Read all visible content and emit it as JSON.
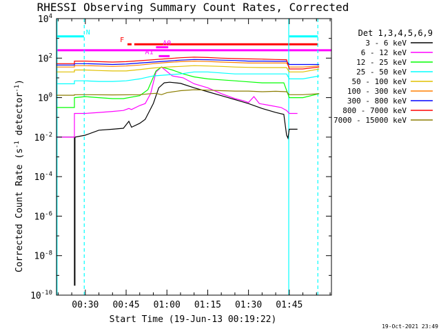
{
  "chart_data": {
    "type": "line",
    "title": "RHESSI Observing Summary Count Rates, Corrected",
    "xlabel": "Start Time (19-Jun-13 00:19:22)",
    "ylabel_parts": {
      "pre": "Corrected Count Rate (s",
      "sup1": "-1",
      "mid": " detector",
      "sup2": "-1",
      "post": ")"
    },
    "x_ticks": [
      {
        "t": 30,
        "label": "00:30"
      },
      {
        "t": 45,
        "label": "00:45"
      },
      {
        "t": 60,
        "label": "01:00"
      },
      {
        "t": 75,
        "label": "01:15"
      },
      {
        "t": 90,
        "label": "01:30"
      },
      {
        "t": 105,
        "label": "01:45"
      }
    ],
    "y_ticks": [
      {
        "exp": 4,
        "base": "10",
        "sup": "4"
      },
      {
        "exp": 2,
        "base": "10",
        "sup": "2"
      },
      {
        "exp": 0,
        "base": "10",
        "sup": "0"
      },
      {
        "exp": -2,
        "base": "10",
        "sup": "-2"
      },
      {
        "exp": -4,
        "base": "10",
        "sup": "-4"
      },
      {
        "exp": -6,
        "base": "10",
        "sup": "-6"
      },
      {
        "exp": -8,
        "base": "10",
        "sup": "-8"
      },
      {
        "exp": -10,
        "base": "10",
        "sup": "-10"
      }
    ],
    "xlim": [
      19.4,
      120.5
    ],
    "ylim_log10": [
      -10,
      4
    ],
    "legend_title": "Det 1,3,4,5,6,9",
    "legend_position": "right",
    "series": [
      {
        "name": "3 - 6 keV",
        "color": "#000000",
        "points": [
          [
            19.4,
            -2
          ],
          [
            26,
            -2
          ],
          [
            26,
            -9.5
          ],
          [
            26.2,
            -9.5
          ],
          [
            26.2,
            -2
          ],
          [
            30,
            -1.9
          ],
          [
            35,
            -1.65
          ],
          [
            40,
            -1.6
          ],
          [
            44,
            -1.55
          ],
          [
            46,
            -1.2
          ],
          [
            47,
            -1.5
          ],
          [
            50,
            -1.3
          ],
          [
            52,
            -1.1
          ],
          [
            55,
            -0.3
          ],
          [
            57,
            0.5
          ],
          [
            59,
            0.75
          ],
          [
            61,
            0.78
          ],
          [
            65,
            0.72
          ],
          [
            70,
            0.5
          ],
          [
            75,
            0.3
          ],
          [
            80,
            0.1
          ],
          [
            85,
            -0.1
          ],
          [
            90,
            -0.3
          ],
          [
            95,
            -0.55
          ],
          [
            100,
            -0.75
          ],
          [
            103,
            -0.85
          ],
          [
            104,
            -1.9
          ],
          [
            104.5,
            -2.05
          ],
          [
            105,
            -1.6
          ],
          [
            108,
            -1.6
          ]
        ]
      },
      {
        "name": "6 - 12 keV",
        "color": "#ff00ff",
        "points": [
          [
            19.4,
            -2
          ],
          [
            26,
            -2
          ],
          [
            26,
            -0.8
          ],
          [
            30,
            -0.8
          ],
          [
            35,
            -0.75
          ],
          [
            40,
            -0.7
          ],
          [
            44,
            -0.65
          ],
          [
            46,
            -0.55
          ],
          [
            47,
            -0.6
          ],
          [
            50,
            -0.4
          ],
          [
            52,
            -0.3
          ],
          [
            54,
            0.2
          ],
          [
            56,
            1.3
          ],
          [
            58,
            1.55
          ],
          [
            62,
            1.1
          ],
          [
            66,
            1.0
          ],
          [
            70,
            0.7
          ],
          [
            75,
            0.5
          ],
          [
            80,
            0.2
          ],
          [
            85,
            -0.05
          ],
          [
            88,
            -0.15
          ],
          [
            90,
            -0.25
          ],
          [
            92,
            0.05
          ],
          [
            94,
            -0.3
          ],
          [
            98,
            -0.4
          ],
          [
            102,
            -0.5
          ],
          [
            104,
            -0.65
          ],
          [
            105,
            -0.8
          ],
          [
            108,
            -0.8
          ]
        ]
      },
      {
        "name": "12 - 25 keV",
        "color": "#00ff00",
        "points": [
          [
            19.4,
            -0.5
          ],
          [
            26,
            -0.5
          ],
          [
            26,
            0
          ],
          [
            30,
            0.05
          ],
          [
            35,
            0
          ],
          [
            40,
            -0.05
          ],
          [
            44,
            -0.05
          ],
          [
            50,
            0.1
          ],
          [
            53,
            0.4
          ],
          [
            56,
            1.35
          ],
          [
            58,
            1.55
          ],
          [
            62,
            1.4
          ],
          [
            66,
            1.2
          ],
          [
            70,
            1.05
          ],
          [
            75,
            0.95
          ],
          [
            80,
            0.9
          ],
          [
            85,
            0.85
          ],
          [
            90,
            0.8
          ],
          [
            95,
            0.75
          ],
          [
            100,
            0.75
          ],
          [
            103,
            0.75
          ],
          [
            105,
            0
          ],
          [
            110,
            0
          ],
          [
            116,
            0.2
          ]
        ]
      },
      {
        "name": "25 - 50 keV",
        "color": "#00ffff",
        "points": [
          [
            19.4,
            0.7
          ],
          [
            26,
            0.7
          ],
          [
            26,
            0.85
          ],
          [
            30,
            0.85
          ],
          [
            35,
            0.82
          ],
          [
            40,
            0.82
          ],
          [
            45,
            0.85
          ],
          [
            50,
            0.95
          ],
          [
            55,
            1.1
          ],
          [
            60,
            1.15
          ],
          [
            65,
            1.2
          ],
          [
            70,
            1.3
          ],
          [
            75,
            1.3
          ],
          [
            80,
            1.25
          ],
          [
            85,
            1.2
          ],
          [
            90,
            1.2
          ],
          [
            95,
            1.2
          ],
          [
            100,
            1.2
          ],
          [
            104,
            1.2
          ],
          [
            105,
            0.95
          ],
          [
            110,
            0.95
          ],
          [
            116,
            1.1
          ]
        ]
      },
      {
        "name": "50 - 100 keV",
        "color": "#e0c000",
        "points": [
          [
            19.4,
            1.3
          ],
          [
            26,
            1.3
          ],
          [
            26,
            1.4
          ],
          [
            30,
            1.4
          ],
          [
            35,
            1.37
          ],
          [
            40,
            1.35
          ],
          [
            45,
            1.35
          ],
          [
            50,
            1.42
          ],
          [
            55,
            1.5
          ],
          [
            60,
            1.55
          ],
          [
            65,
            1.58
          ],
          [
            70,
            1.62
          ],
          [
            75,
            1.6
          ],
          [
            80,
            1.58
          ],
          [
            85,
            1.55
          ],
          [
            90,
            1.53
          ],
          [
            95,
            1.52
          ],
          [
            100,
            1.52
          ],
          [
            104,
            1.52
          ],
          [
            105,
            1.3
          ],
          [
            110,
            1.3
          ],
          [
            116,
            1.45
          ]
        ]
      },
      {
        "name": "100 - 300 keV",
        "color": "#ff7f00",
        "points": [
          [
            19.4,
            1.55
          ],
          [
            26,
            1.55
          ],
          [
            26,
            1.62
          ],
          [
            30,
            1.62
          ],
          [
            35,
            1.6
          ],
          [
            40,
            1.58
          ],
          [
            45,
            1.6
          ],
          [
            50,
            1.65
          ],
          [
            55,
            1.72
          ],
          [
            60,
            1.78
          ],
          [
            65,
            1.82
          ],
          [
            70,
            1.85
          ],
          [
            75,
            1.83
          ],
          [
            80,
            1.8
          ],
          [
            85,
            1.78
          ],
          [
            90,
            1.75
          ],
          [
            95,
            1.75
          ],
          [
            100,
            1.75
          ],
          [
            104,
            1.75
          ],
          [
            105,
            1.55
          ],
          [
            110,
            1.55
          ],
          [
            116,
            1.6
          ]
        ]
      },
      {
        "name": "300 - 800 keV",
        "color": "#0000ff",
        "points": [
          [
            19.4,
            1.65
          ],
          [
            26,
            1.65
          ],
          [
            26,
            1.72
          ],
          [
            30,
            1.72
          ],
          [
            35,
            1.7
          ],
          [
            40,
            1.68
          ],
          [
            45,
            1.7
          ],
          [
            50,
            1.75
          ],
          [
            55,
            1.8
          ],
          [
            60,
            1.85
          ],
          [
            65,
            1.9
          ],
          [
            70,
            1.93
          ],
          [
            75,
            1.92
          ],
          [
            80,
            1.9
          ],
          [
            85,
            1.88
          ],
          [
            90,
            1.85
          ],
          [
            95,
            1.85
          ],
          [
            100,
            1.84
          ],
          [
            104,
            1.84
          ],
          [
            105,
            1.68
          ],
          [
            110,
            1.68
          ],
          [
            116,
            1.68
          ]
        ]
      },
      {
        "name": "800 - 7000 keV",
        "color": "#ff0000",
        "points": [
          [
            19.4,
            1.72
          ],
          [
            26,
            1.72
          ],
          [
            26,
            1.85
          ],
          [
            30,
            1.85
          ],
          [
            35,
            1.82
          ],
          [
            40,
            1.8
          ],
          [
            45,
            1.82
          ],
          [
            50,
            1.87
          ],
          [
            55,
            1.92
          ],
          [
            60,
            1.97
          ],
          [
            65,
            2.02
          ],
          [
            70,
            2.05
          ],
          [
            75,
            2.03
          ],
          [
            80,
            2.0
          ],
          [
            85,
            1.98
          ],
          [
            90,
            1.96
          ],
          [
            95,
            1.95
          ],
          [
            100,
            1.93
          ],
          [
            104,
            1.92
          ],
          [
            105,
            1.45
          ],
          [
            110,
            1.45
          ],
          [
            116,
            1.55
          ]
        ]
      },
      {
        "name": "7000 - 15000 keV",
        "color": "#8b7d00",
        "points": [
          [
            19.4,
            0.12
          ],
          [
            26,
            0.12
          ],
          [
            26,
            0.15
          ],
          [
            30,
            0.15
          ],
          [
            40,
            0.14
          ],
          [
            50,
            0.15
          ],
          [
            54,
            0.2
          ],
          [
            56,
            0.22
          ],
          [
            58,
            0.15
          ],
          [
            60,
            0.25
          ],
          [
            65,
            0.35
          ],
          [
            70,
            0.4
          ],
          [
            75,
            0.38
          ],
          [
            80,
            0.35
          ],
          [
            85,
            0.33
          ],
          [
            90,
            0.33
          ],
          [
            95,
            0.3
          ],
          [
            100,
            0.32
          ],
          [
            104,
            0.3
          ],
          [
            105,
            0.15
          ],
          [
            110,
            0.15
          ],
          [
            116,
            0.2
          ]
        ]
      }
    ],
    "flag_bars": [
      {
        "label": "N",
        "color": "#00ffff",
        "y_log10": 3.1,
        "label_t": 31,
        "segments": [
          [
            19.4,
            29.5
          ],
          [
            105,
            115.5
          ]
        ]
      },
      {
        "label": "F",
        "color": "#ff0000",
        "y_log10": 2.7,
        "label_t": 43.5,
        "segments": [
          [
            45.5,
            47
          ],
          [
            48,
            115.5
          ]
        ]
      },
      {
        "label": "",
        "color": "#ff00ff",
        "y_log10": 2.4,
        "label_t": 0,
        "segments": [
          [
            19.4,
            120.5
          ]
        ]
      },
      {
        "label": "A0",
        "color": "#ff00ff",
        "y_log10": 2.55,
        "label_t": 60,
        "segments": [
          [
            56,
            60.5
          ]
        ]
      },
      {
        "label": "A1",
        "color": "#ff00ff",
        "y_log10": 2.1,
        "label_t": 53.5,
        "segments": [
          [
            57,
            61
          ]
        ]
      }
    ],
    "vertical_lines": [
      {
        "t": 19.6,
        "color": "#00ffff",
        "style": "solid"
      },
      {
        "t": 29.6,
        "color": "#00ffff",
        "style": "dashed"
      },
      {
        "t": 104.8,
        "color": "#00ffff",
        "style": "solid"
      },
      {
        "t": 115.5,
        "color": "#00ffff",
        "style": "dashed"
      }
    ],
    "grid": false
  },
  "footer": {
    "date_stamp": "19-Oct-2021 23:49"
  }
}
